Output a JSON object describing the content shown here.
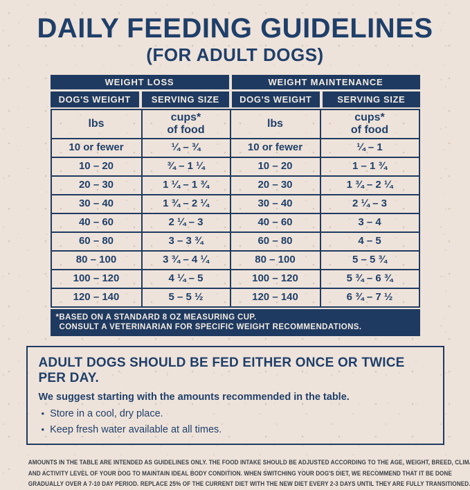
{
  "page": {
    "title": "DAILY FEEDING GUIDELINES",
    "subtitle": "(FOR ADULT DOGS)"
  },
  "colors": {
    "navy_bar": "#1f3a60",
    "navy_text": "#1f3f6a",
    "paper_background": "#eee3da",
    "bar_text": "#f2ece4"
  },
  "table": {
    "group_headers": [
      "WEIGHT LOSS",
      "WEIGHT MAINTENANCE"
    ],
    "column_headers": [
      "DOG'S WEIGHT",
      "SERVING SIZE",
      "DOG'S WEIGHT",
      "SERVING SIZE"
    ],
    "units": {
      "weight_unit": "lbs",
      "serving_unit_line1": "cups*",
      "serving_unit_line2": "of food"
    },
    "rows": [
      {
        "wl_weight": "10 or fewer",
        "wl_serving": "¼ – ¾",
        "wm_weight": "10 or fewer",
        "wm_serving": "¼ – 1"
      },
      {
        "wl_weight": "10 – 20",
        "wl_serving": "¾ – 1 ¼",
        "wm_weight": "10 – 20",
        "wm_serving": "1 – 1 ¾"
      },
      {
        "wl_weight": "20 – 30",
        "wl_serving": "1 ¼ – 1 ¾",
        "wm_weight": "20 – 30",
        "wm_serving": "1 ¾ – 2 ¼"
      },
      {
        "wl_weight": "30 – 40",
        "wl_serving": "1 ¾ – 2 ¼",
        "wm_weight": "30 – 40",
        "wm_serving": "2 ¼ – 3"
      },
      {
        "wl_weight": "40 – 60",
        "wl_serving": "2 ¼ – 3",
        "wm_weight": "40 – 60",
        "wm_serving": "3 – 4"
      },
      {
        "wl_weight": "60 – 80",
        "wl_serving": "3 – 3 ¾",
        "wm_weight": "60 – 80",
        "wm_serving": "4 – 5"
      },
      {
        "wl_weight": "80 – 100",
        "wl_serving": "3 ¾ – 4 ¼",
        "wm_weight": "80 – 100",
        "wm_serving": "5 – 5 ¾"
      },
      {
        "wl_weight": "100 – 120",
        "wl_serving": "4 ¼ – 5",
        "wm_weight": "100 – 120",
        "wm_serving": "5 ¾ – 6 ¾"
      },
      {
        "wl_weight": "120 – 140",
        "wl_serving": "5 – 5 ½",
        "wm_weight": "120 – 140",
        "wm_serving": "6 ¾ – 7 ½"
      }
    ],
    "footnote_line1": "*BASED ON A STANDARD 8 OZ MEASURING CUP.",
    "footnote_line2": "CONSULT A VETERINARIAN FOR SPECIFIC WEIGHT RECOMMENDATIONS."
  },
  "info_box": {
    "heading": "ADULT DOGS SHOULD BE FED EITHER ONCE OR TWICE PER DAY.",
    "subheading": "We suggest starting with the amounts recommended in the table.",
    "bullet_glyph": "•",
    "bullets": [
      "Store in a cool, dry place.",
      "Keep fresh water available at all times."
    ]
  },
  "disclaimer_lines": [
    "AMOUNTS IN THE TABLE ARE INTENDED AS GUIDELINES ONLY. THE FOOD INTAKE SHOULD BE ADJUSTED ACCORDING TO THE AGE, WEIGHT, BREED, CLIMATE,",
    "AND ACTIVITY LEVEL OF YOUR DOG TO MAINTAIN IDEAL BODY CONDITION. WHEN SWITCHING YOUR DOG'S DIET, WE RECOMMEND THAT IT BE DONE",
    "GRADUALLY OVER A 7-10 DAY PERIOD. REPLACE 25% OF THE CURRENT DIET WITH THE NEW DIET EVERY 2-3 DAYS UNTIL THEY ARE FULLY TRANSITIONED."
  ]
}
